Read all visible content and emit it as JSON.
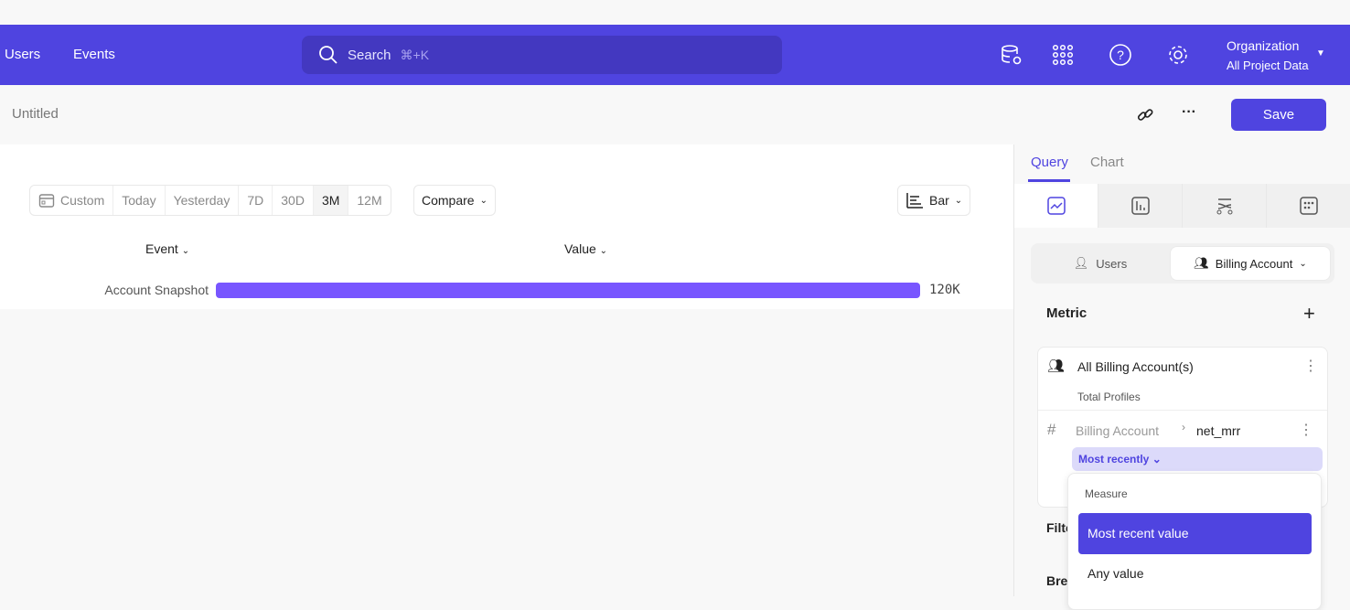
{
  "nav": {
    "links": [
      "Users",
      "Events"
    ],
    "search_placeholder": "Search",
    "search_shortcut": "⌘+K",
    "org_title": "Organization",
    "org_subtitle": "All Project Data",
    "icons": [
      "database-gear-icon",
      "apps-grid-icon",
      "help-icon",
      "settings-gear-icon"
    ]
  },
  "subheader": {
    "title": "Untitled",
    "save_label": "Save"
  },
  "toolbar": {
    "date_ranges": [
      "Custom",
      "Today",
      "Yesterday",
      "7D",
      "30D",
      "3M",
      "12M"
    ],
    "selected_range": "3M",
    "compare_label": "Compare",
    "chart_type_label": "Bar"
  },
  "table": {
    "columns": [
      "Event",
      "Value"
    ],
    "rows": [
      {
        "event": "Account Snapshot",
        "value": "120K"
      }
    ]
  },
  "chart_data": {
    "type": "bar",
    "orientation": "horizontal",
    "categories": [
      "Account Snapshot"
    ],
    "values": [
      120000
    ],
    "value_labels": [
      "120K"
    ],
    "bar_color": "#7856ff"
  },
  "panel": {
    "tabs": [
      "Query",
      "Chart"
    ],
    "active_tab": "Query",
    "entity_toggle": [
      "Users",
      "Billing Account"
    ],
    "selected_entity": "Billing Account",
    "metric_label": "Metric",
    "metric": {
      "title": "All Billing Account(s)",
      "subtitle": "Total Profiles",
      "property_parent": "Billing Account",
      "property": "net_mrr",
      "aggregation": "Most recently"
    },
    "filter_label": "Filter",
    "breakdown_label": "Breakdown"
  },
  "dropdown": {
    "header": "Measure",
    "options": [
      "Most recent value",
      "Any value"
    ],
    "selected": "Most recent value"
  },
  "colors": {
    "brand": "#4f44e0",
    "bar": "#7856ff"
  }
}
